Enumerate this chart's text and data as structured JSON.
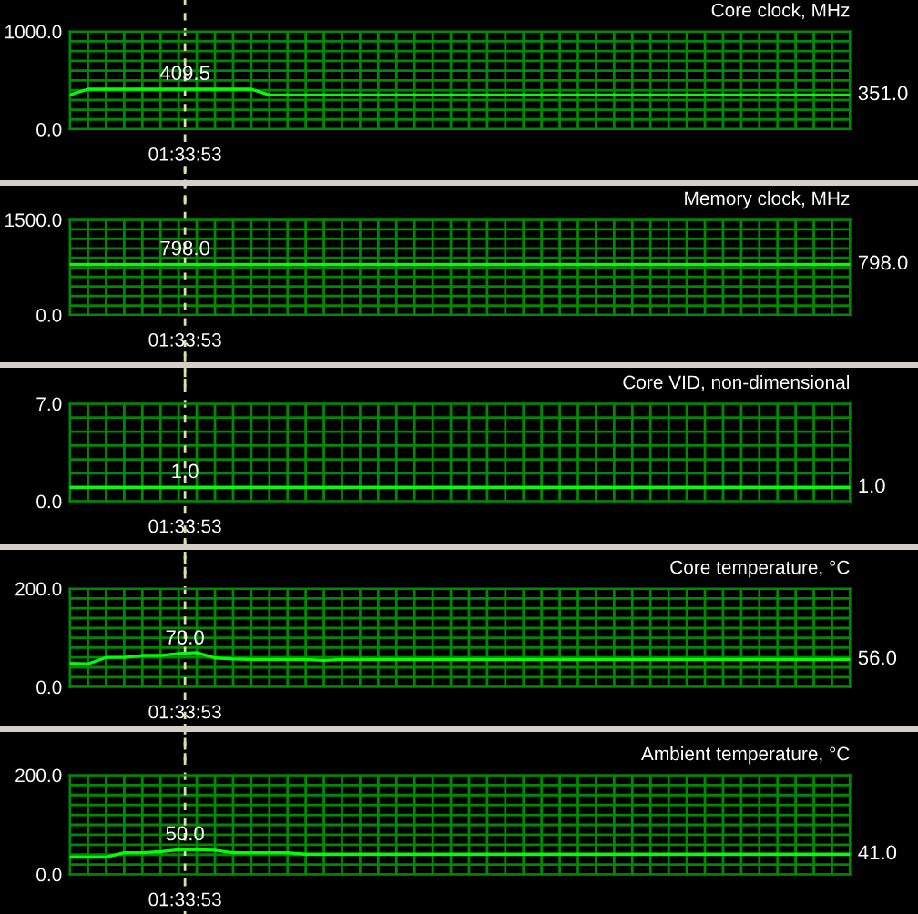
{
  "chart_data": [
    {
      "type": "line",
      "title": "Core clock, MHz",
      "categories": [
        null,
        null,
        null,
        null,
        null,
        null,
        null,
        null,
        null,
        null,
        null,
        null,
        null,
        null,
        null,
        null,
        null,
        null,
        null,
        null,
        null,
        null,
        null,
        null,
        null,
        null,
        null,
        null,
        null,
        null,
        null,
        null,
        null,
        null,
        null,
        null,
        null,
        null,
        null,
        null,
        null,
        null,
        null,
        null
      ],
      "series": [
        {
          "color": "#00ff00",
          "values": [
            351,
            409.5,
            409.5,
            409.5,
            409.5,
            409.5,
            409.5,
            409.5,
            409.5,
            409.5,
            409.5,
            351,
            351,
            351,
            351,
            351,
            351,
            351,
            351,
            351,
            351,
            351,
            351,
            351,
            351,
            351,
            351,
            351,
            351,
            351,
            351,
            351,
            351,
            351,
            351,
            351,
            351,
            351,
            351,
            351,
            351,
            351,
            351,
            351
          ]
        }
      ],
      "ylim": [
        0,
        1000
      ],
      "yticks": [
        {
          "value": 0,
          "label": "0.0"
        },
        {
          "value": 100,
          "label": null
        },
        {
          "value": 200,
          "label": null
        },
        {
          "value": 300,
          "label": null
        },
        {
          "value": 400,
          "label": null
        },
        {
          "value": 500,
          "label": null
        },
        {
          "value": 600,
          "label": null
        },
        {
          "value": 700,
          "label": null
        },
        {
          "value": 800,
          "label": null
        },
        {
          "value": 900,
          "label": null
        },
        {
          "value": 1000,
          "label": "1000.0"
        }
      ],
      "grid": true,
      "tick_labels": "y",
      "annotations": [
        "409.5",
        "351.0",
        "01:33:53"
      ]
    },
    {
      "type": "line",
      "title": "Memory clock, MHz",
      "categories": [
        null,
        null,
        null,
        null,
        null,
        null,
        null,
        null,
        null,
        null,
        null,
        null,
        null,
        null,
        null,
        null,
        null,
        null,
        null,
        null,
        null,
        null,
        null,
        null,
        null,
        null,
        null,
        null,
        null,
        null,
        null,
        null,
        null,
        null,
        null,
        null,
        null,
        null,
        null,
        null,
        null,
        null,
        null,
        null
      ],
      "series": [
        {
          "color": "#00ff00",
          "values": [
            798,
            798,
            798,
            798,
            798,
            798,
            798,
            798,
            798,
            798,
            798,
            798,
            798,
            798,
            798,
            798,
            798,
            798,
            798,
            798,
            798,
            798,
            798,
            798,
            798,
            798,
            798,
            798,
            798,
            798,
            798,
            798,
            798,
            798,
            798,
            798,
            798,
            798,
            798,
            798,
            798,
            798,
            798,
            798
          ]
        }
      ],
      "ylim": [
        0,
        1500
      ],
      "yticks": [
        {
          "value": 0,
          "label": "0.0"
        },
        {
          "value": 150,
          "label": null
        },
        {
          "value": 300,
          "label": null
        },
        {
          "value": 450,
          "label": null
        },
        {
          "value": 600,
          "label": null
        },
        {
          "value": 750,
          "label": null
        },
        {
          "value": 900,
          "label": null
        },
        {
          "value": 1050,
          "label": null
        },
        {
          "value": 1200,
          "label": null
        },
        {
          "value": 1350,
          "label": null
        },
        {
          "value": 1500,
          "label": "1500.0"
        }
      ],
      "grid": true,
      "tick_labels": "y",
      "annotations": [
        "798.0",
        "798.0",
        "01:33:53"
      ]
    },
    {
      "type": "line",
      "title": "Core VID, non-dimensional",
      "categories": [
        null,
        null,
        null,
        null,
        null,
        null,
        null,
        null,
        null,
        null,
        null,
        null,
        null,
        null,
        null,
        null,
        null,
        null,
        null,
        null,
        null,
        null,
        null,
        null,
        null,
        null,
        null,
        null,
        null,
        null,
        null,
        null,
        null,
        null,
        null,
        null,
        null,
        null,
        null,
        null,
        null,
        null,
        null,
        null
      ],
      "series": [
        {
          "color": "#00ff00",
          "values": [
            1,
            1,
            1,
            1,
            1,
            1,
            1,
            1,
            1,
            1,
            1,
            1,
            1,
            1,
            1,
            1,
            1,
            1,
            1,
            1,
            1,
            1,
            1,
            1,
            1,
            1,
            1,
            1,
            1,
            1,
            1,
            1,
            1,
            1,
            1,
            1,
            1,
            1,
            1,
            1,
            1,
            1,
            1,
            1
          ]
        }
      ],
      "ylim": [
        0,
        7
      ],
      "yticks": [
        {
          "value": 0,
          "label": "0.0"
        },
        {
          "value": 2,
          "label": null
        },
        {
          "value": 3,
          "label": null
        },
        {
          "value": 4,
          "label": null
        },
        {
          "value": 5,
          "label": null
        },
        {
          "value": 6,
          "label": null
        },
        {
          "value": 7,
          "label": "7.0"
        }
      ],
      "grid": true,
      "tick_labels": "y",
      "annotations": [
        "1.0",
        "1.0",
        "01:33:53"
      ]
    },
    {
      "type": "line",
      "title": "Core temperature, °C",
      "categories": [
        null,
        null,
        null,
        null,
        null,
        null,
        null,
        null,
        null,
        null,
        null,
        null,
        null,
        null,
        null,
        null,
        null,
        null,
        null,
        null,
        null,
        null,
        null,
        null,
        null,
        null,
        null,
        null,
        null,
        null,
        null,
        null,
        null,
        null,
        null,
        null,
        null,
        null,
        null,
        null,
        null,
        null,
        null,
        null
      ],
      "series": [
        {
          "color": "#00ff00",
          "values": [
            48,
            47,
            60,
            60,
            64,
            64,
            68,
            70,
            59,
            57,
            56,
            56,
            56,
            56,
            54,
            56,
            56,
            56,
            56,
            56,
            56,
            56,
            56,
            56,
            56,
            56,
            56,
            56,
            56,
            56,
            56,
            56,
            56,
            56,
            56,
            56,
            56,
            56,
            56,
            56,
            56,
            56,
            56,
            56
          ]
        }
      ],
      "ylim": [
        0,
        200
      ],
      "yticks": [
        {
          "value": 0,
          "label": "0.0"
        },
        {
          "value": 20,
          "label": null
        },
        {
          "value": 40,
          "label": null
        },
        {
          "value": 60,
          "label": null
        },
        {
          "value": 80,
          "label": null
        },
        {
          "value": 100,
          "label": null
        },
        {
          "value": 120,
          "label": null
        },
        {
          "value": 140,
          "label": null
        },
        {
          "value": 160,
          "label": null
        },
        {
          "value": 180,
          "label": null
        },
        {
          "value": 200,
          "label": "200.0"
        }
      ],
      "grid": true,
      "tick_labels": "y",
      "annotations": [
        "70.0",
        "56.0",
        "01:33:53"
      ]
    },
    {
      "type": "line",
      "title": "Ambient temperature, °C",
      "categories": [
        null,
        null,
        null,
        null,
        null,
        null,
        null,
        null,
        null,
        null,
        null,
        null,
        null,
        null,
        null,
        null,
        null,
        null,
        null,
        null,
        null,
        null,
        null,
        null,
        null,
        null,
        null,
        null,
        null,
        null,
        null,
        null,
        null,
        null,
        null,
        null,
        null,
        null,
        null,
        null,
        null,
        null,
        null,
        null
      ],
      "series": [
        {
          "color": "#00ff00",
          "values": [
            35,
            35,
            35,
            44,
            44,
            46,
            50,
            50,
            49,
            44,
            44,
            44,
            44,
            41,
            41,
            41,
            41,
            41,
            41,
            41,
            41,
            41,
            41,
            41,
            41,
            41,
            41,
            41,
            41,
            41,
            41,
            41,
            41,
            41,
            41,
            41,
            41,
            41,
            41,
            41,
            41,
            41,
            41,
            41
          ]
        }
      ],
      "ylim": [
        0,
        200
      ],
      "yticks": [
        {
          "value": 0,
          "label": "0.0"
        },
        {
          "value": 20,
          "label": null
        },
        {
          "value": 40,
          "label": null
        },
        {
          "value": 60,
          "label": null
        },
        {
          "value": 80,
          "label": null
        },
        {
          "value": 100,
          "label": null
        },
        {
          "value": 120,
          "label": null
        },
        {
          "value": 140,
          "label": null
        },
        {
          "value": 160,
          "label": null
        },
        {
          "value": 180,
          "label": null
        },
        {
          "value": 200,
          "label": "200.0"
        }
      ],
      "grid": true,
      "tick_labels": "y",
      "annotations": [
        "50.0",
        "41.0",
        "01:33:53"
      ]
    }
  ]
}
